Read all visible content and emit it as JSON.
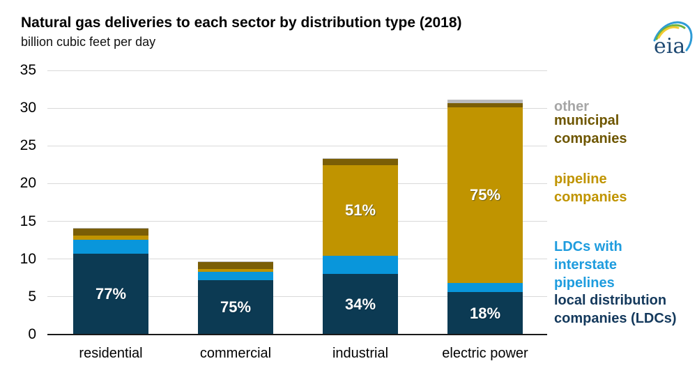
{
  "header": {
    "title": "Natural gas deliveries to each sector by distribution type (2018)",
    "subtitle": "billion cubic feet per day",
    "logo_text": "eia"
  },
  "chart_data": {
    "type": "bar",
    "stacked": true,
    "title": "Natural gas deliveries to each sector by distribution type (2018)",
    "ylabel": "billion cubic feet per day",
    "xlabel": "",
    "ylim": [
      0,
      35
    ],
    "y_ticks": [
      0,
      5,
      10,
      15,
      20,
      25,
      30,
      35
    ],
    "grid": true,
    "legend_position": "right",
    "categories": [
      "residential",
      "commercial",
      "industrial",
      "electric power"
    ],
    "series": [
      {
        "name": "local distribution companies (LDCs)",
        "color": "#0C3A53",
        "values": [
          10.7,
          7.2,
          8.0,
          5.6
        ],
        "labels": [
          "77%",
          "75%",
          "34%",
          "18%"
        ]
      },
      {
        "name": "LDCs with interstate pipelines",
        "color": "#0996DB",
        "values": [
          1.9,
          1.1,
          2.4,
          1.2
        ],
        "labels": [
          "",
          "",
          "",
          ""
        ]
      },
      {
        "name": "pipeline companies",
        "color": "#C09400",
        "values": [
          0.5,
          0.4,
          12.0,
          23.3
        ],
        "labels": [
          "",
          "",
          "51%",
          "75%"
        ]
      },
      {
        "name": "municipal companies",
        "color": "#7A5E06",
        "values": [
          0.9,
          0.9,
          0.9,
          0.6
        ],
        "labels": [
          "",
          "",
          "",
          ""
        ]
      },
      {
        "name": "other",
        "color": "#B9BABC",
        "values": [
          0.1,
          0.1,
          0.1,
          0.4
        ],
        "labels": [
          "",
          "",
          "",
          ""
        ]
      }
    ]
  },
  "legend": {
    "items": [
      {
        "text": "other",
        "color": "#A6A6A6"
      },
      {
        "text": "municipal\ncompanies",
        "color": "#6E5600"
      },
      {
        "text": "pipeline\ncompanies",
        "color": "#C09400"
      },
      {
        "text": "LDCs with\ninterstate\npipelines",
        "color": "#1E9CDE"
      },
      {
        "text": "local distribution\ncompanies (LDCs)",
        "color": "#14395C"
      }
    ]
  },
  "colors": {
    "gridline": "#d9d9d9",
    "axis": "#1a1a1a",
    "bar_label_text": "#ffffff"
  }
}
